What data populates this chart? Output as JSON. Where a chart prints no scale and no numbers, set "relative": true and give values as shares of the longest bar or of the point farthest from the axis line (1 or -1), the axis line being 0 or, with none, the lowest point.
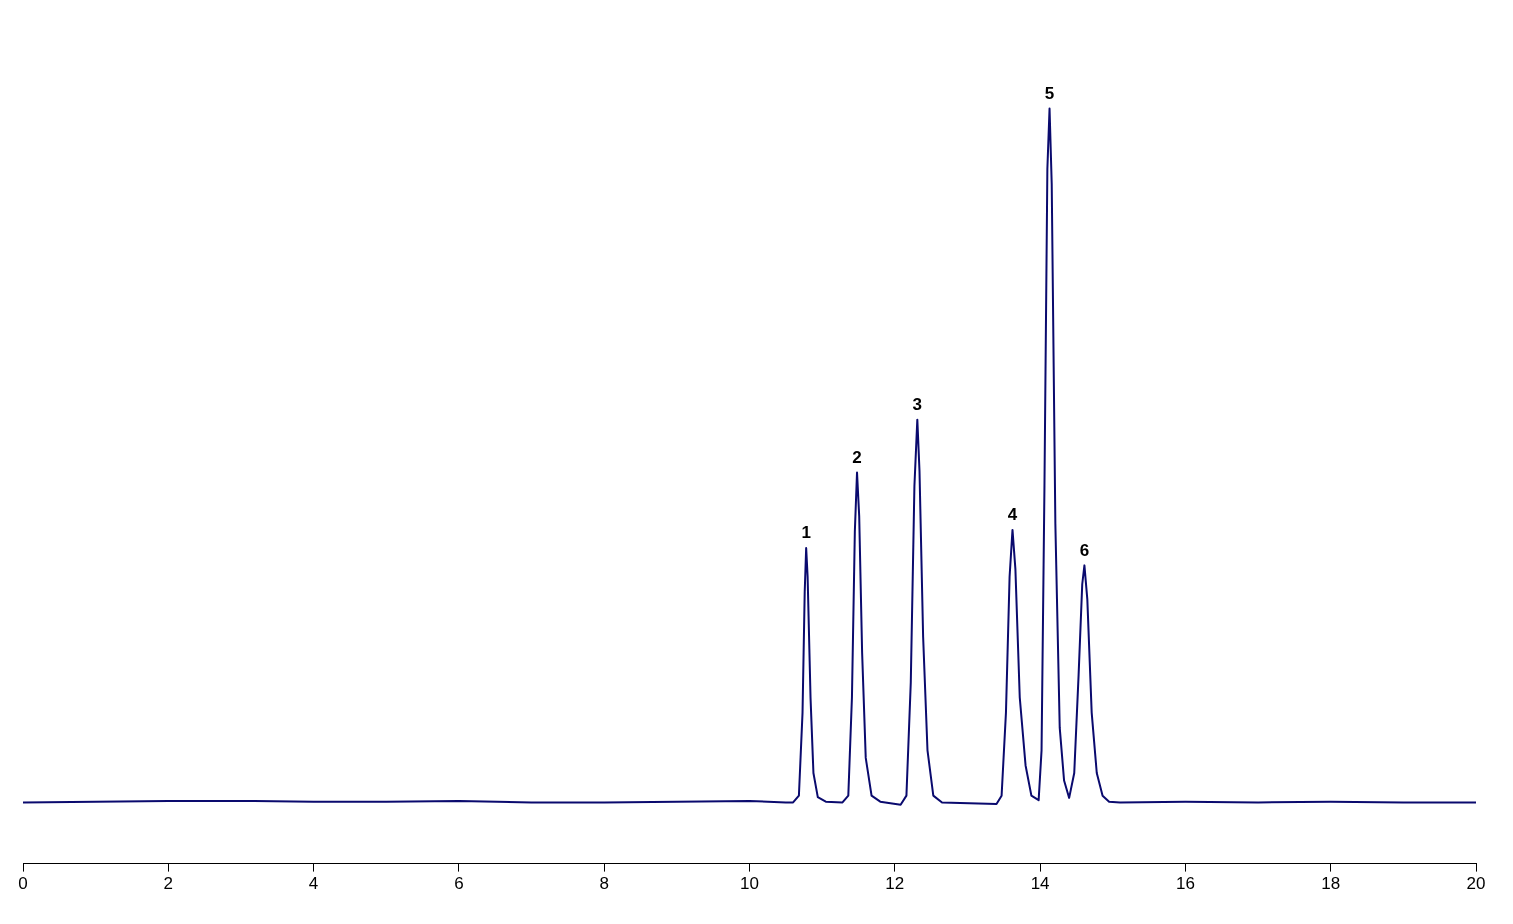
{
  "chart_data": {
    "type": "line",
    "relative": true,
    "xlim": [
      0,
      20
    ],
    "xticks": [
      0,
      2,
      4,
      6,
      8,
      10,
      12,
      14,
      16,
      18,
      20
    ],
    "grid": false,
    "legend": false,
    "marker": "none",
    "line_style": "solid",
    "series": [
      {
        "color": "#0a0a6e",
        "x": [
          0,
          1,
          2,
          3,
          4,
          5,
          6,
          7,
          8,
          9,
          10,
          10.5,
          10.6,
          10.68,
          10.73,
          10.76,
          10.78,
          10.8,
          10.84,
          10.88,
          10.94,
          11.05,
          11.28,
          11.36,
          11.41,
          11.45,
          11.48,
          11.51,
          11.55,
          11.6,
          11.68,
          11.8,
          12.08,
          12.16,
          12.22,
          12.27,
          12.31,
          12.34,
          12.39,
          12.45,
          12.53,
          12.65,
          13.4,
          13.47,
          13.53,
          13.58,
          13.62,
          13.66,
          13.72,
          13.8,
          13.88,
          13.98,
          14.02,
          14.06,
          14.1,
          14.13,
          14.16,
          14.21,
          14.27,
          14.33,
          14.4,
          14.47,
          14.53,
          14.58,
          14.61,
          14.65,
          14.71,
          14.78,
          14.86,
          14.95,
          15.1,
          16,
          17,
          18,
          19,
          20
        ],
        "values": [
          0.081,
          0.082,
          0.083,
          0.083,
          0.082,
          0.082,
          0.083,
          0.081,
          0.081,
          0.082,
          0.083,
          0.081,
          0.081,
          0.09,
          0.2,
          0.36,
          0.418,
          0.38,
          0.22,
          0.12,
          0.088,
          0.082,
          0.081,
          0.09,
          0.22,
          0.44,
          0.518,
          0.46,
          0.28,
          0.14,
          0.09,
          0.082,
          0.078,
          0.09,
          0.24,
          0.5,
          0.588,
          0.52,
          0.3,
          0.15,
          0.09,
          0.081,
          0.079,
          0.09,
          0.2,
          0.38,
          0.442,
          0.39,
          0.22,
          0.13,
          0.09,
          0.084,
          0.15,
          0.5,
          0.92,
          1.0,
          0.9,
          0.45,
          0.18,
          0.11,
          0.087,
          0.12,
          0.25,
          0.37,
          0.395,
          0.35,
          0.2,
          0.12,
          0.09,
          0.082,
          0.081,
          0.082,
          0.081,
          0.082,
          0.081,
          0.081
        ]
      }
    ],
    "annotations": [
      {
        "text": "1",
        "x": 10.78,
        "y": 0.418
      },
      {
        "text": "2",
        "x": 11.48,
        "y": 0.518
      },
      {
        "text": "3",
        "x": 12.31,
        "y": 0.588
      },
      {
        "text": "4",
        "x": 13.62,
        "y": 0.442
      },
      {
        "text": "5",
        "x": 14.13,
        "y": 1.0
      },
      {
        "text": "6",
        "x": 14.61,
        "y": 0.395
      }
    ]
  }
}
